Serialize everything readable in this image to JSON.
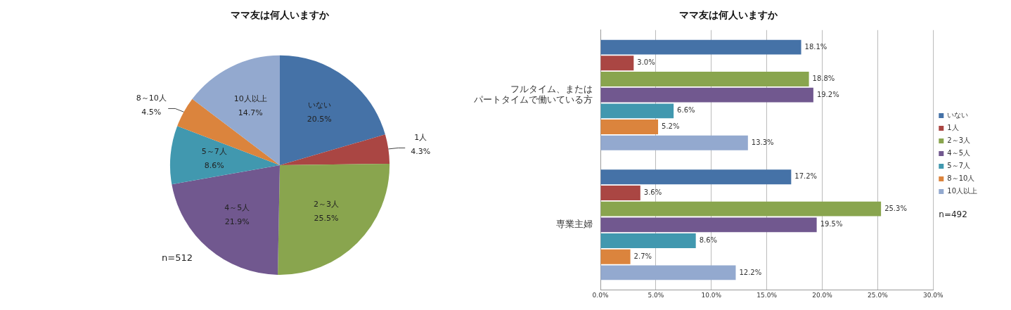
{
  "chart_data": [
    {
      "type": "pie",
      "title": "ママ友は何人いますか",
      "categories": [
        "いない",
        "1人",
        "2～3人",
        "4～5人",
        "5～7人",
        "8～10人",
        "10人以上"
      ],
      "values": [
        20.5,
        4.3,
        25.5,
        21.9,
        8.6,
        4.5,
        14.7
      ],
      "value_labels": [
        "20.5%",
        "4.3%",
        "25.5%",
        "21.9%",
        "8.6%",
        "4.5%",
        "14.7%"
      ],
      "colors": [
        "#4572a7",
        "#aa4643",
        "#89a54e",
        "#71588f",
        "#4198af",
        "#db843d",
        "#93a9cf"
      ],
      "annotations": [
        "n=512"
      ],
      "legend": false
    },
    {
      "type": "bar",
      "orientation": "horizontal",
      "title": "ママ友は何人いますか",
      "categories": [
        "フルタイム、またはパートタイムで働いている方",
        "専業主婦"
      ],
      "series": [
        {
          "name": "いない",
          "color": "#4572a7",
          "values": [
            18.1,
            17.2
          ],
          "value_labels": [
            "18.1%",
            "17.2%"
          ]
        },
        {
          "name": "1人",
          "color": "#aa4643",
          "values": [
            3.0,
            3.6
          ],
          "value_labels": [
            "3.0%",
            "3.6%"
          ]
        },
        {
          "name": "2～3人",
          "color": "#89a54e",
          "values": [
            18.8,
            25.3
          ],
          "value_labels": [
            "18.8%",
            "25.3%"
          ]
        },
        {
          "name": "4～5人",
          "color": "#71588f",
          "values": [
            19.2,
            19.5
          ],
          "value_labels": [
            "19.2%",
            "19.5%"
          ]
        },
        {
          "name": "5～7人",
          "color": "#4198af",
          "values": [
            6.6,
            8.6
          ],
          "value_labels": [
            "6.6%",
            "8.6%"
          ]
        },
        {
          "name": "8～10人",
          "color": "#db843d",
          "values": [
            5.2,
            2.7
          ],
          "value_labels": [
            "5.2%",
            "2.7%"
          ]
        },
        {
          "name": "10人以上",
          "color": "#93a9cf",
          "values": [
            13.3,
            12.2
          ],
          "value_labels": [
            "13.3%",
            "12.2%"
          ]
        }
      ],
      "xlim": [
        0,
        30
      ],
      "xticks": [
        {
          "value": 0,
          "label": "0.0%"
        },
        {
          "value": 5,
          "label": "5.0%"
        },
        {
          "value": 10,
          "label": "10.0%"
        },
        {
          "value": 15,
          "label": "15.0%"
        },
        {
          "value": 20,
          "label": "20.0%"
        },
        {
          "value": 25,
          "label": "25.0%"
        },
        {
          "value": 30,
          "label": "30.0%"
        }
      ],
      "grid": "x",
      "legend": "right",
      "annotations": [
        "n=492"
      ]
    }
  ]
}
